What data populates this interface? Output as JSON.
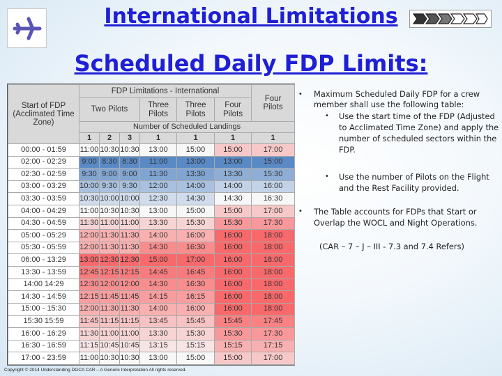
{
  "header": {
    "title": "International Limitations",
    "subtitle": "Scheduled Daily FDP Limits:"
  },
  "table": {
    "top_header": "FDP Limitations  -  International",
    "start_header": [
      "Start of FDP",
      "(Acclimated Time",
      "Zone)"
    ],
    "pilots_two": "Two Pilots",
    "pilots_three": [
      "Three",
      "Pilots"
    ],
    "pilots_three_b": [
      "Three",
      "Pilots"
    ],
    "pilots_four": [
      "Four",
      "Pilots"
    ],
    "pilots_four_b": [
      "Four",
      "Pilots"
    ],
    "landings_header": "Number of Scheduled Landings",
    "landing_numbers": [
      "1",
      "2",
      "3",
      "1",
      "1",
      "1",
      "1"
    ],
    "rows": [
      {
        "start": "00:00 - 01:59",
        "cells": [
          "11:00",
          "10:30",
          "10:30",
          "13:00",
          "15:00",
          "15:00",
          "17:00"
        ]
      },
      {
        "start": "02:00 - 02:29",
        "cells": [
          "9:00",
          "8:30",
          "8:30",
          "11:00",
          "13:00",
          "13:00",
          "15:00"
        ]
      },
      {
        "start": "02:30 - 02:59",
        "cells": [
          "9:30",
          "9:00",
          "9:00",
          "11:30",
          "13:30",
          "13:30",
          "15:30"
        ]
      },
      {
        "start": "03:00 - 03:29",
        "cells": [
          "10:00",
          "9:30",
          "9:30",
          "12:00",
          "14:00",
          "14:00",
          "16:00"
        ]
      },
      {
        "start": "03:30 - 03:59",
        "cells": [
          "10:30",
          "10:00",
          "10:00",
          "12:30",
          "14:30",
          "14:30",
          "16:30"
        ]
      },
      {
        "start": "04:00 - 04:29",
        "cells": [
          "11:00",
          "10:30",
          "10:30",
          "13:00",
          "15:00",
          "15:00",
          "17:00"
        ]
      },
      {
        "start": "04:30 - 04:59",
        "cells": [
          "11:30",
          "11:00",
          "11:00",
          "13:30",
          "15:30",
          "15:30",
          "17:30"
        ]
      },
      {
        "start": "05:00 - 05:29",
        "cells": [
          "12:00",
          "11:30",
          "11:30",
          "14:00",
          "16:00",
          "16:00",
          "18:00"
        ]
      },
      {
        "start": "05:30 - 05:59",
        "cells": [
          "12:00",
          "11:30",
          "11:30",
          "14:30",
          "16:30",
          "16:00",
          "18:00"
        ]
      },
      {
        "start": "06:00 - 13:29",
        "cells": [
          "13:00",
          "12:30",
          "12:30",
          "15:00",
          "17:00",
          "16:00",
          "18:00"
        ]
      },
      {
        "start": "13:30 - 13:59",
        "cells": [
          "12:45",
          "12:15",
          "12:15",
          "14:45",
          "16:45",
          "16:00",
          "18:00"
        ]
      },
      {
        "start": "14:00   14:29",
        "cells": [
          "12:30",
          "12:00",
          "12:00",
          "14:30",
          "16:30",
          "16:00",
          "18:00"
        ]
      },
      {
        "start": "14:30 - 14:59",
        "cells": [
          "12:15",
          "11:45",
          "11:45",
          "14:15",
          "16:15",
          "16:00",
          "18:00"
        ]
      },
      {
        "start": "15:00 - 15:30",
        "cells": [
          "12:00",
          "11:30",
          "11:30",
          "14:00",
          "16:00",
          "16:00",
          "18:00"
        ]
      },
      {
        "start": "15:30   15:59",
        "cells": [
          "11:45",
          "11:15",
          "11:15",
          "13:45",
          "15:45",
          "15:45",
          "17:45"
        ]
      },
      {
        "start": "16:00 - 16:29",
        "cells": [
          "11:30",
          "11:00",
          "11:00",
          "13:30",
          "15:30",
          "15:30",
          "17:30"
        ]
      },
      {
        "start": "16:30 - 16:59",
        "cells": [
          "11:15",
          "10:45",
          "10:45",
          "13:15",
          "15:15",
          "15:15",
          "17:15"
        ]
      },
      {
        "start": "17:00 - 23:59",
        "cells": [
          "11:00",
          "10:30",
          "10:30",
          "13:00",
          "15:00",
          "15:00",
          "17:00"
        ]
      }
    ]
  },
  "bullets": {
    "b1": "Maximum Scheduled Daily FDP for a crew member shall use the following table:",
    "sub1": "Use the start time of the FDP (Adjusted to Acclimated Time Zone) and apply the number of scheduled sectors within the FDP.",
    "sub2": "Use the number of Pilots on the Flight and the Rest Facility provided.",
    "b2": "The Table accounts for FDPs that Start or Overlap the WOCL and Night Operations.",
    "note": "(CAR – 7 – J – III  - 7.3 and 7.4 Refers)"
  },
  "footer": {
    "copyright": "Copyright © 2014 Understanding DGCA CAR – A Generic Interpretation All rights reserved."
  },
  "icons": {
    "left_logo": "airplane-icon",
    "right_logo": "chevron-arrows-icon"
  },
  "colors": {
    "title": "#1f1fd6",
    "header_fill": "#d9d9d9",
    "scale_low": "#5a8ac6",
    "scale_mid": "#f7f7f7",
    "scale_high": "#f8696b"
  }
}
